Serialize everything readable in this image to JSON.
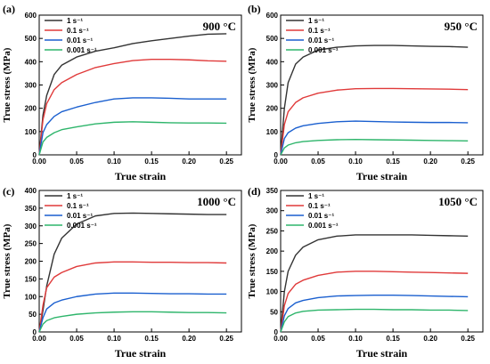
{
  "chart_data": [
    {
      "type": "line",
      "panel_label": "(a)",
      "annotation": "900 °C",
      "xlabel": "True strain",
      "ylabel": "True stress (MPa)",
      "xlim": [
        0,
        0.27
      ],
      "ylim": [
        0,
        600
      ],
      "xticks": [
        "0.00",
        "0.05",
        "0.10",
        "0.15",
        "0.20",
        "0.25"
      ],
      "yticks": [
        "0",
        "100",
        "200",
        "300",
        "400",
        "500",
        "600"
      ],
      "legend_position": "top-left",
      "series": [
        {
          "name": "1 s⁻¹",
          "color": "#333333",
          "x": [
            0,
            0.005,
            0.01,
            0.02,
            0.03,
            0.05,
            0.075,
            0.1,
            0.125,
            0.15,
            0.175,
            0.2,
            0.225,
            0.25
          ],
          "y": [
            0,
            170,
            255,
            345,
            385,
            420,
            445,
            460,
            478,
            490,
            500,
            510,
            518,
            520
          ]
        },
        {
          "name": "0.1 s⁻¹",
          "color": "#e03a3a",
          "x": [
            0,
            0.005,
            0.01,
            0.02,
            0.03,
            0.05,
            0.075,
            0.1,
            0.125,
            0.15,
            0.175,
            0.2,
            0.225,
            0.25
          ],
          "y": [
            0,
            150,
            220,
            280,
            310,
            345,
            375,
            392,
            405,
            410,
            410,
            408,
            404,
            402
          ]
        },
        {
          "name": "0.01 s⁻¹",
          "color": "#1a5fcf",
          "x": [
            0,
            0.005,
            0.01,
            0.02,
            0.03,
            0.05,
            0.075,
            0.1,
            0.125,
            0.15,
            0.175,
            0.2,
            0.225,
            0.25
          ],
          "y": [
            0,
            95,
            130,
            165,
            185,
            205,
            225,
            240,
            245,
            245,
            243,
            240,
            240,
            240
          ]
        },
        {
          "name": "0.001 s⁻¹",
          "color": "#2eb56b",
          "x": [
            0,
            0.005,
            0.01,
            0.02,
            0.03,
            0.05,
            0.075,
            0.1,
            0.125,
            0.15,
            0.175,
            0.2,
            0.225,
            0.25
          ],
          "y": [
            0,
            55,
            75,
            95,
            108,
            120,
            133,
            140,
            142,
            140,
            138,
            137,
            137,
            136
          ]
        }
      ]
    },
    {
      "type": "line",
      "panel_label": "(b)",
      "annotation": "950 °C",
      "xlabel": "True strain",
      "ylabel": "True stress (MPa)",
      "xlim": [
        0,
        0.27
      ],
      "ylim": [
        0,
        600
      ],
      "xticks": [
        "0.00",
        "0.05",
        "0.10",
        "0.15",
        "0.20",
        "0.25"
      ],
      "yticks": [
        "0",
        "100",
        "200",
        "300",
        "400",
        "500",
        "600"
      ],
      "legend_position": "top-left",
      "series": [
        {
          "name": "1 s⁻¹",
          "color": "#333333",
          "x": [
            0,
            0.005,
            0.01,
            0.02,
            0.03,
            0.05,
            0.075,
            0.1,
            0.125,
            0.15,
            0.175,
            0.2,
            0.225,
            0.25
          ],
          "y": [
            0,
            200,
            310,
            390,
            420,
            450,
            462,
            468,
            470,
            470,
            468,
            466,
            465,
            462
          ]
        },
        {
          "name": "0.1 s⁻¹",
          "color": "#e03a3a",
          "x": [
            0,
            0.005,
            0.01,
            0.02,
            0.03,
            0.05,
            0.075,
            0.1,
            0.125,
            0.15,
            0.175,
            0.2,
            0.225,
            0.25
          ],
          "y": [
            0,
            130,
            185,
            225,
            245,
            265,
            278,
            284,
            285,
            285,
            284,
            283,
            282,
            280
          ]
        },
        {
          "name": "0.01 s⁻¹",
          "color": "#1a5fcf",
          "x": [
            0,
            0.005,
            0.01,
            0.02,
            0.03,
            0.05,
            0.075,
            0.1,
            0.125,
            0.15,
            0.175,
            0.2,
            0.225,
            0.25
          ],
          "y": [
            0,
            70,
            95,
            115,
            125,
            135,
            142,
            145,
            143,
            141,
            140,
            139,
            139,
            138
          ]
        },
        {
          "name": "0.001 s⁻¹",
          "color": "#2eb56b",
          "x": [
            0,
            0.005,
            0.01,
            0.02,
            0.03,
            0.05,
            0.075,
            0.1,
            0.125,
            0.15,
            0.175,
            0.2,
            0.225,
            0.25
          ],
          "y": [
            0,
            30,
            42,
            52,
            57,
            62,
            65,
            66,
            65,
            64,
            63,
            62,
            61,
            60
          ]
        }
      ]
    },
    {
      "type": "line",
      "panel_label": "(c)",
      "annotation": "1000 °C",
      "xlabel": "True strain",
      "ylabel": "True stress (MPa)",
      "xlim": [
        0,
        0.27
      ],
      "ylim": [
        0,
        400
      ],
      "xticks": [
        "0.00",
        "0.05",
        "0.10",
        "0.15",
        "0.20",
        "0.25"
      ],
      "yticks": [
        "0",
        "50",
        "100",
        "150",
        "200",
        "250",
        "300",
        "350",
        "400"
      ],
      "legend_position": "top-left",
      "series": [
        {
          "name": "1 s⁻¹",
          "color": "#333333",
          "x": [
            0,
            0.005,
            0.01,
            0.02,
            0.03,
            0.05,
            0.075,
            0.1,
            0.125,
            0.15,
            0.175,
            0.2,
            0.225,
            0.25
          ],
          "y": [
            0,
            60,
            130,
            220,
            265,
            305,
            328,
            335,
            336,
            335,
            334,
            333,
            332,
            332
          ]
        },
        {
          "name": "0.1 s⁻¹",
          "color": "#e03a3a",
          "x": [
            0,
            0.005,
            0.01,
            0.02,
            0.03,
            0.05,
            0.075,
            0.1,
            0.125,
            0.15,
            0.175,
            0.2,
            0.225,
            0.25
          ],
          "y": [
            0,
            75,
            125,
            155,
            168,
            185,
            195,
            198,
            198,
            197,
            197,
            196,
            196,
            195
          ]
        },
        {
          "name": "0.01 s⁻¹",
          "color": "#1a5fcf",
          "x": [
            0,
            0.005,
            0.01,
            0.02,
            0.03,
            0.05,
            0.075,
            0.1,
            0.125,
            0.15,
            0.175,
            0.2,
            0.225,
            0.25
          ],
          "y": [
            0,
            40,
            65,
            82,
            90,
            100,
            107,
            110,
            110,
            109,
            108,
            108,
            107,
            107
          ]
        },
        {
          "name": "0.001 s⁻¹",
          "color": "#2eb56b",
          "x": [
            0,
            0.005,
            0.01,
            0.02,
            0.03,
            0.05,
            0.075,
            0.1,
            0.125,
            0.15,
            0.175,
            0.2,
            0.225,
            0.25
          ],
          "y": [
            0,
            22,
            32,
            40,
            44,
            50,
            54,
            56,
            57,
            57,
            56,
            55,
            55,
            54
          ]
        }
      ]
    },
    {
      "type": "line",
      "panel_label": "(d)",
      "annotation": "1050 °C",
      "xlabel": "True strain",
      "ylabel": "True stress (MPa)",
      "xlim": [
        0,
        0.27
      ],
      "ylim": [
        0,
        350
      ],
      "xticks": [
        "0.00",
        "0.05",
        "0.10",
        "0.15",
        "0.20",
        "0.25"
      ],
      "yticks": [
        "0",
        "50",
        "100",
        "150",
        "200",
        "250",
        "300",
        "350"
      ],
      "legend_position": "top-left",
      "series": [
        {
          "name": "1 s⁻¹",
          "color": "#333333",
          "x": [
            0,
            0.005,
            0.01,
            0.02,
            0.03,
            0.05,
            0.075,
            0.1,
            0.125,
            0.15,
            0.175,
            0.2,
            0.225,
            0.25
          ],
          "y": [
            0,
            100,
            150,
            190,
            210,
            228,
            237,
            240,
            240,
            240,
            240,
            239,
            238,
            237
          ]
        },
        {
          "name": "0.1 s⁻¹",
          "color": "#e03a3a",
          "x": [
            0,
            0.005,
            0.01,
            0.02,
            0.03,
            0.05,
            0.075,
            0.1,
            0.125,
            0.15,
            0.175,
            0.2,
            0.225,
            0.25
          ],
          "y": [
            0,
            65,
            95,
            118,
            128,
            140,
            148,
            150,
            150,
            149,
            148,
            147,
            146,
            145
          ]
        },
        {
          "name": "0.01 s⁻¹",
          "color": "#1a5fcf",
          "x": [
            0,
            0.005,
            0.01,
            0.02,
            0.03,
            0.05,
            0.075,
            0.1,
            0.125,
            0.15,
            0.175,
            0.2,
            0.225,
            0.25
          ],
          "y": [
            0,
            40,
            58,
            72,
            78,
            85,
            89,
            90,
            91,
            91,
            90,
            89,
            88,
            87
          ]
        },
        {
          "name": "0.001 s⁻¹",
          "color": "#2eb56b",
          "x": [
            0,
            0.005,
            0.01,
            0.02,
            0.03,
            0.05,
            0.075,
            0.1,
            0.125,
            0.15,
            0.175,
            0.2,
            0.225,
            0.25
          ],
          "y": [
            0,
            25,
            38,
            47,
            51,
            54,
            55,
            56,
            56,
            55,
            55,
            54,
            54,
            53
          ]
        }
      ]
    }
  ]
}
